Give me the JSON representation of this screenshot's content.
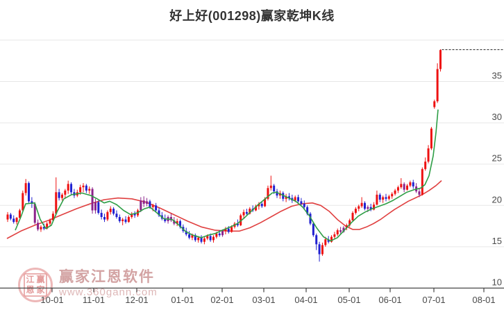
{
  "title": "好上好(001298)赢家乾坤K线",
  "watermark": {
    "logo_chars": [
      "江",
      "赢",
      "恩",
      "家"
    ],
    "brand": "赢家江恩软件",
    "url": "www.360gann.com"
  },
  "chart_data": {
    "type": "candlestick",
    "title": "好上好(001298)赢家乾坤K线",
    "grid": true,
    "legend_position": "none",
    "y_axis": {
      "min": 10,
      "max": 40,
      "tick_step": 5,
      "labeled_ticks": [
        35,
        30,
        25,
        20,
        15,
        10
      ],
      "unlabeled_gridlines": [
        40
      ]
    },
    "x_axis": {
      "tick_labels": [
        "10-01",
        "11-01",
        "12-01",
        "01-01",
        "02-01",
        "03-01",
        "04-01",
        "05-01",
        "06-01",
        "07-01",
        "08-01"
      ]
    },
    "colors": {
      "up_candle": "#ee1111",
      "down_candle": "#2020d0",
      "signal_candle": "#8b228b",
      "ma_fast": "#2e9e46",
      "ma_slow": "#e04040",
      "grid": "#e7e7e7",
      "axis": "#444444",
      "dashed_high_line": "#222222"
    },
    "high_marker_dashed_line_price": 38.85,
    "candles_ohlc": [
      [
        18.3,
        19.2,
        18.0,
        18.9
      ],
      [
        18.9,
        19.1,
        18.2,
        18.4
      ],
      [
        18.4,
        18.8,
        17.8,
        18.0
      ],
      [
        18.0,
        18.6,
        17.7,
        18.5
      ],
      [
        18.5,
        19.6,
        18.4,
        19.4
      ],
      [
        19.4,
        21.8,
        19.2,
        21.5
      ],
      [
        21.5,
        23.2,
        21.2,
        22.7
      ],
      [
        22.7,
        22.9,
        20.3,
        20.5
      ],
      [
        20.5,
        21.0,
        19.7,
        20.2
      ],
      [
        20.2,
        20.4,
        17.7,
        17.9,
        1
      ],
      [
        17.9,
        18.3,
        16.9,
        17.1,
        1
      ],
      [
        17.1,
        17.6,
        16.8,
        17.4
      ],
      [
        17.4,
        17.8,
        17.0,
        17.2
      ],
      [
        17.2,
        18.0,
        17.1,
        17.8
      ],
      [
        17.8,
        18.4,
        17.5,
        18.2
      ],
      [
        18.2,
        19.3,
        18.1,
        19.0
      ],
      [
        19.0,
        23.4,
        18.8,
        21.6
      ],
      [
        21.6,
        22.0,
        20.6,
        20.9
      ],
      [
        20.9,
        21.5,
        20.6,
        21.3
      ],
      [
        21.3,
        22.0,
        20.8,
        21.8
      ],
      [
        21.8,
        23.0,
        21.4,
        22.6
      ],
      [
        22.6,
        22.8,
        21.3,
        21.6
      ],
      [
        21.6,
        22.0,
        20.9,
        21.2
      ],
      [
        21.2,
        21.9,
        21.0,
        21.6
      ],
      [
        21.6,
        22.5,
        21.3,
        22.2
      ],
      [
        22.2,
        22.7,
        21.6,
        22.4
      ],
      [
        22.4,
        22.6,
        21.5,
        21.8
      ],
      [
        21.8,
        22.3,
        21.4,
        22.0
      ],
      [
        22.0,
        22.2,
        19.0,
        19.4,
        1
      ],
      [
        19.4,
        20.8,
        19.0,
        20.4,
        1
      ],
      [
        20.4,
        20.6,
        18.9,
        19.1
      ],
      [
        19.1,
        19.5,
        18.3,
        18.6
      ],
      [
        18.6,
        19.0,
        18.0,
        18.3
      ],
      [
        18.3,
        19.4,
        18.1,
        19.2
      ],
      [
        19.2,
        19.9,
        18.9,
        19.6
      ],
      [
        19.6,
        19.8,
        18.8,
        19.0
      ],
      [
        19.0,
        19.4,
        18.4,
        18.6
      ],
      [
        18.6,
        18.9,
        17.9,
        18.1
      ],
      [
        18.1,
        18.5,
        17.6,
        18.3
      ],
      [
        18.3,
        18.7,
        17.8,
        18.0
      ],
      [
        18.0,
        18.8,
        17.9,
        18.6
      ],
      [
        18.6,
        19.2,
        18.4,
        19.0
      ],
      [
        19.0,
        19.3,
        18.5,
        18.8
      ],
      [
        18.8,
        19.6,
        18.6,
        19.4
      ],
      [
        19.4,
        21.0,
        19.2,
        20.6,
        1
      ],
      [
        20.6,
        21.1,
        19.8,
        20.2,
        1
      ],
      [
        20.2,
        20.9,
        19.9,
        20.5,
        1
      ],
      [
        20.5,
        20.7,
        19.6,
        19.8
      ],
      [
        19.8,
        20.2,
        19.3,
        20.0
      ],
      [
        20.0,
        20.3,
        19.2,
        19.4
      ],
      [
        19.4,
        19.7,
        18.6,
        18.8
      ],
      [
        18.8,
        19.2,
        18.2,
        18.4
      ],
      [
        18.4,
        18.9,
        17.9,
        18.1
      ],
      [
        18.1,
        18.8,
        17.8,
        18.6,
        1
      ],
      [
        18.6,
        19.0,
        18.0,
        18.2,
        1
      ],
      [
        18.2,
        18.6,
        17.6,
        17.8,
        1
      ],
      [
        17.8,
        18.4,
        17.5,
        18.1
      ],
      [
        18.1,
        18.3,
        17.2,
        17.4
      ],
      [
        17.4,
        17.7,
        16.7,
        16.9
      ],
      [
        16.9,
        17.3,
        16.3,
        16.5
      ],
      [
        16.5,
        16.9,
        15.9,
        16.1
      ],
      [
        16.1,
        16.6,
        15.8,
        16.4
      ],
      [
        16.4,
        16.6,
        15.6,
        15.8
      ],
      [
        15.8,
        16.3,
        15.5,
        16.1
      ],
      [
        16.1,
        16.4,
        15.4,
        15.6
      ],
      [
        15.6,
        16.2,
        15.3,
        16.0
      ],
      [
        16.0,
        16.5,
        15.8,
        16.3
      ],
      [
        16.3,
        16.6,
        15.6,
        15.8
      ],
      [
        15.8,
        16.4,
        15.5,
        16.2
      ],
      [
        16.2,
        16.8,
        16.0,
        16.6
      ],
      [
        16.6,
        17.0,
        16.2,
        16.4
      ],
      [
        16.4,
        17.1,
        16.2,
        16.9,
        1
      ],
      [
        16.9,
        17.4,
        16.5,
        17.2
      ],
      [
        17.2,
        17.5,
        16.6,
        16.8
      ],
      [
        16.8,
        17.6,
        16.7,
        17.4
      ],
      [
        17.4,
        18.0,
        17.2,
        17.8
      ],
      [
        17.8,
        18.3,
        17.4,
        17.6
      ],
      [
        17.6,
        19.0,
        17.5,
        18.8
      ],
      [
        18.8,
        19.5,
        18.5,
        19.2
      ],
      [
        19.2,
        19.6,
        18.8,
        19.0
      ],
      [
        19.0,
        19.8,
        18.9,
        19.6
      ],
      [
        19.6,
        20.0,
        19.2,
        19.4
      ],
      [
        19.4,
        20.1,
        19.3,
        19.9
      ],
      [
        19.9,
        20.4,
        19.5,
        20.2
      ],
      [
        20.2,
        20.5,
        19.7,
        19.9
      ],
      [
        19.9,
        21.0,
        19.8,
        20.8
      ],
      [
        20.8,
        22.4,
        20.6,
        22.1
      ],
      [
        22.1,
        23.6,
        21.8,
        22.4
      ],
      [
        22.4,
        22.6,
        21.4,
        21.7
      ],
      [
        21.7,
        22.0,
        20.9,
        21.2
      ],
      [
        21.2,
        21.8,
        20.8,
        21.5
      ],
      [
        21.5,
        21.7,
        20.5,
        20.8
      ],
      [
        20.8,
        21.4,
        20.4,
        21.1
      ],
      [
        21.1,
        21.5,
        20.6,
        20.9
      ],
      [
        20.9,
        21.3,
        20.3,
        20.6
      ],
      [
        20.6,
        21.2,
        20.4,
        21.0
      ],
      [
        21.0,
        21.3,
        20.2,
        20.5
      ],
      [
        20.5,
        20.9,
        19.9,
        20.2
      ],
      [
        20.2,
        20.6,
        19.5,
        19.8
      ],
      [
        19.8,
        20.0,
        18.8,
        19.0
      ],
      [
        19.0,
        19.2,
        17.6,
        17.8
      ],
      [
        17.8,
        18.0,
        16.2,
        16.4
      ],
      [
        16.4,
        16.6,
        14.6,
        15.3
      ],
      [
        15.3,
        15.6,
        13.2,
        14.1
      ],
      [
        14.1,
        15.5,
        13.9,
        15.2
      ],
      [
        15.2,
        16.2,
        15.0,
        15.9
      ],
      [
        15.9,
        16.3,
        15.4,
        15.6
      ],
      [
        15.6,
        16.4,
        15.5,
        16.2
      ],
      [
        16.2,
        16.8,
        16.0,
        16.5
      ],
      [
        16.5,
        17.2,
        16.3,
        17.0
      ],
      [
        17.0,
        17.4,
        16.6,
        16.8,
        1
      ],
      [
        16.8,
        17.5,
        16.7,
        17.3,
        1
      ],
      [
        17.3,
        17.8,
        17.0,
        17.6
      ],
      [
        17.6,
        18.4,
        17.4,
        18.2
      ],
      [
        18.2,
        19.3,
        18.1,
        19.1
      ],
      [
        19.1,
        19.8,
        18.9,
        19.6
      ],
      [
        19.6,
        20.1,
        19.3,
        19.9
      ],
      [
        19.9,
        21.0,
        19.7,
        20.3
      ],
      [
        20.3,
        20.5,
        19.4,
        19.6
      ],
      [
        19.6,
        20.0,
        19.2,
        19.8,
        1
      ],
      [
        19.8,
        20.2,
        19.3,
        19.5
      ],
      [
        19.5,
        20.4,
        19.4,
        20.1
      ],
      [
        20.1,
        21.8,
        20.0,
        21.3
      ],
      [
        21.3,
        21.5,
        20.4,
        20.7
      ],
      [
        20.7,
        21.2,
        20.3,
        21.0
      ],
      [
        21.0,
        21.4,
        20.5,
        20.8
      ],
      [
        20.8,
        21.3,
        20.6,
        21.1
      ],
      [
        21.1,
        21.6,
        20.8,
        21.4
      ],
      [
        21.4,
        22.0,
        21.2,
        21.8
      ],
      [
        21.8,
        22.4,
        21.5,
        22.2
      ],
      [
        22.2,
        23.3,
        22.0,
        22.6
      ],
      [
        22.6,
        22.8,
        21.6,
        21.9,
        1
      ],
      [
        21.9,
        22.6,
        21.8,
        22.4
      ],
      [
        22.4,
        23.0,
        22.2,
        22.8
      ],
      [
        22.8,
        23.1,
        22.0,
        22.3
      ],
      [
        22.3,
        22.7,
        21.5,
        21.7,
        1
      ],
      [
        21.7,
        22.1,
        21.0,
        21.3,
        1
      ],
      [
        21.3,
        24.6,
        21.2,
        24.4
      ],
      [
        24.4,
        25.8,
        24.2,
        25.3
      ],
      [
        25.3,
        27.3,
        25.1,
        26.9
      ],
      [
        26.9,
        29.5,
        26.7,
        29.3
      ],
      [
        31.9,
        32.8,
        31.7,
        32.6
      ],
      [
        32.6,
        37.2,
        32.4,
        36.5
      ],
      [
        36.5,
        38.9,
        36.2,
        38.8
      ]
    ],
    "ma_fast_green_points": [
      [
        22,
        17.0
      ],
      [
        30,
        18.6
      ],
      [
        37,
        20.2
      ],
      [
        50,
        20.3
      ],
      [
        58,
        18.3
      ],
      [
        66,
        17.2
      ],
      [
        74,
        17.6
      ],
      [
        82,
        19.2
      ],
      [
        92,
        20.8
      ],
      [
        103,
        21.3
      ],
      [
        118,
        21.5
      ],
      [
        131,
        21.2
      ],
      [
        140,
        20.8
      ],
      [
        150,
        20.3
      ],
      [
        158,
        20.5
      ],
      [
        168,
        20.1
      ],
      [
        178,
        19.4
      ],
      [
        188,
        18.9
      ],
      [
        198,
        19.1
      ],
      [
        208,
        19.6
      ],
      [
        216,
        19.8
      ],
      [
        226,
        19.1
      ],
      [
        236,
        18.4
      ],
      [
        248,
        18.3
      ],
      [
        258,
        17.6
      ],
      [
        268,
        16.8
      ],
      [
        278,
        16.4
      ],
      [
        290,
        16.1
      ],
      [
        300,
        16.4
      ],
      [
        310,
        16.6
      ],
      [
        320,
        17.0
      ],
      [
        332,
        17.4
      ],
      [
        342,
        17.8
      ],
      [
        352,
        18.5
      ],
      [
        362,
        19.3
      ],
      [
        372,
        20.1
      ],
      [
        382,
        20.8
      ],
      [
        392,
        21.5
      ],
      [
        398,
        21.6
      ],
      [
        406,
        21.3
      ],
      [
        416,
        20.9
      ],
      [
        426,
        20.5
      ],
      [
        436,
        19.8
      ],
      [
        446,
        18.7
      ],
      [
        456,
        17.3
      ],
      [
        466,
        16.2
      ],
      [
        476,
        15.7
      ],
      [
        486,
        16.1
      ],
      [
        496,
        17.0
      ],
      [
        506,
        17.9
      ],
      [
        516,
        18.7
      ],
      [
        526,
        19.2
      ],
      [
        536,
        19.6
      ],
      [
        546,
        19.9
      ],
      [
        556,
        20.2
      ],
      [
        566,
        20.6
      ],
      [
        576,
        21.1
      ],
      [
        586,
        21.6
      ],
      [
        596,
        21.9
      ],
      [
        606,
        22.1
      ],
      [
        612,
        22.5
      ],
      [
        618,
        23.6
      ],
      [
        624,
        26.0
      ],
      [
        628,
        28.8
      ],
      [
        631,
        31.6
      ]
    ],
    "ma_slow_red_points": [
      [
        10,
        16.0
      ],
      [
        30,
        16.9
      ],
      [
        50,
        17.6
      ],
      [
        70,
        18.2
      ],
      [
        90,
        18.9
      ],
      [
        110,
        19.6
      ],
      [
        130,
        20.2
      ],
      [
        150,
        20.7
      ],
      [
        170,
        20.9
      ],
      [
        190,
        20.8
      ],
      [
        210,
        20.4
      ],
      [
        230,
        19.7
      ],
      [
        250,
        18.9
      ],
      [
        270,
        18.1
      ],
      [
        290,
        17.4
      ],
      [
        310,
        17.0
      ],
      [
        330,
        16.9
      ],
      [
        345,
        16.9
      ],
      [
        360,
        17.3
      ],
      [
        375,
        17.9
      ],
      [
        390,
        18.6
      ],
      [
        405,
        19.3
      ],
      [
        420,
        19.9
      ],
      [
        435,
        20.2
      ],
      [
        450,
        20.3
      ],
      [
        462,
        20.0
      ],
      [
        474,
        19.3
      ],
      [
        486,
        18.3
      ],
      [
        498,
        17.5
      ],
      [
        508,
        17.1
      ],
      [
        518,
        17.1
      ],
      [
        528,
        17.4
      ],
      [
        538,
        17.8
      ],
      [
        548,
        18.3
      ],
      [
        558,
        18.9
      ],
      [
        568,
        19.5
      ],
      [
        578,
        20.0
      ],
      [
        588,
        20.5
      ],
      [
        598,
        20.9
      ],
      [
        608,
        21.3
      ],
      [
        618,
        21.8
      ],
      [
        628,
        22.4
      ],
      [
        636,
        23.0
      ]
    ]
  }
}
